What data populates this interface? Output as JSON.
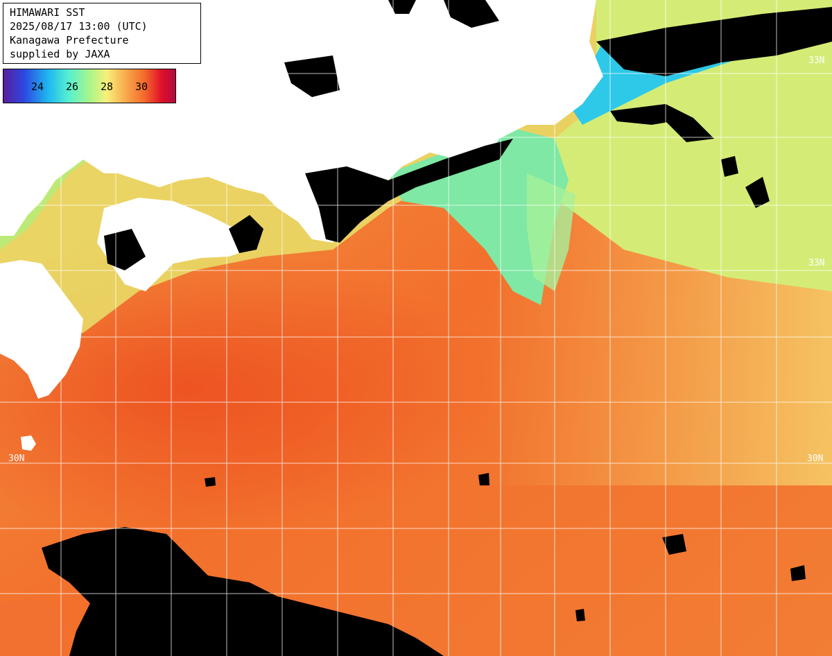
{
  "header": {
    "line1": "HIMAWARI SST",
    "line2": "2025/08/17 13:00 (UTC)",
    "line3": "Kanagawa Prefecture",
    "line4": "supplied by JAXA"
  },
  "colorbar": {
    "ticks": [
      "24",
      "26",
      "28",
      "30"
    ],
    "colors": [
      "#5a1e9e",
      "#2c48e0",
      "#1fb7f0",
      "#57f0d0",
      "#a8f58a",
      "#f7f07a",
      "#f9b050",
      "#f46a2a",
      "#e0102a",
      "#b00a40"
    ]
  },
  "latitude_labels": {
    "top_right": "33N",
    "mid_right": "33N",
    "bottom_left": "30N",
    "bottom_right": "30N"
  },
  "map": {
    "land_color": "#ffffff",
    "cloud_mask_color": "#000000",
    "grid_color": "#ffffff"
  }
}
